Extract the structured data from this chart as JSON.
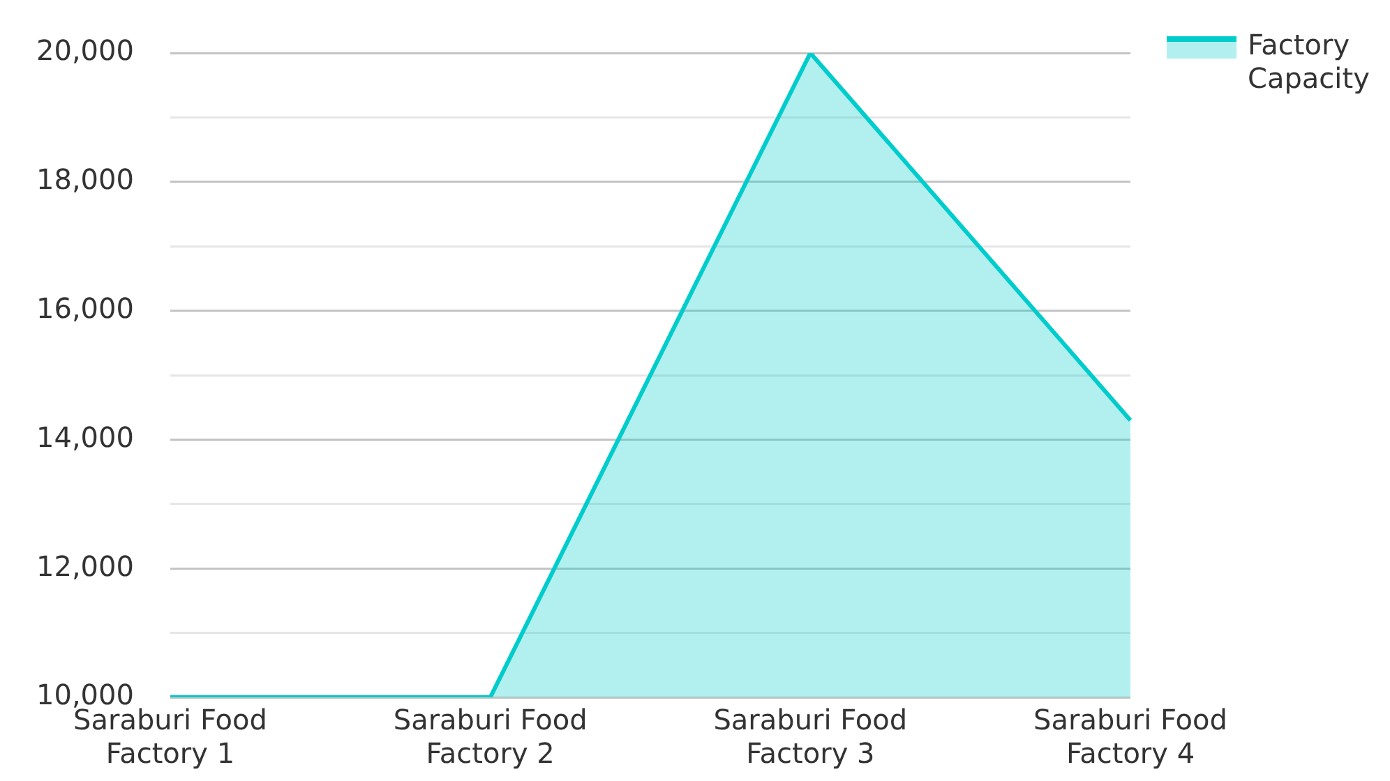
{
  "chart_data": {
    "type": "area",
    "categories": [
      "Saraburi Food Factory 1",
      "Saraburi Food Factory 2",
      "Saraburi Food Factory 3",
      "Saraburi Food Factory 4"
    ],
    "series": [
      {
        "name": "Factory Capacity",
        "color": "#00cccc",
        "values": [
          10000,
          10000,
          20000,
          14300
        ]
      }
    ],
    "ylim": [
      10000,
      20000
    ],
    "yticks": [
      {
        "value": 10000,
        "label": "10,000"
      },
      {
        "value": 11000,
        "label": null
      },
      {
        "value": 12000,
        "label": "12,000"
      },
      {
        "value": 13000,
        "label": null
      },
      {
        "value": 14000,
        "label": "14,000"
      },
      {
        "value": 15000,
        "label": null
      },
      {
        "value": 16000,
        "label": "16,000"
      },
      {
        "value": 17000,
        "label": null
      },
      {
        "value": 18000,
        "label": "18,000"
      },
      {
        "value": 19000,
        "label": null
      },
      {
        "value": 20000,
        "label": "20,000"
      }
    ],
    "grid": "y",
    "legend": "top right"
  }
}
